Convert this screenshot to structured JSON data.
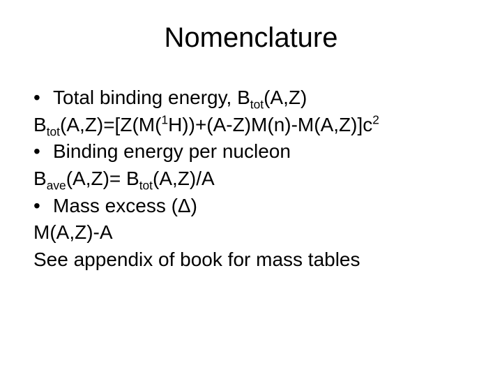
{
  "title": "Nomenclature",
  "lines": {
    "l1_pre": "Total binding energy, B",
    "l1_sub": "tot",
    "l1_post": "(A,Z)",
    "l2_a": "B",
    "l2_sub1": "tot",
    "l2_b": "(A,Z)=[Z(M(",
    "l2_sup1": "1",
    "l2_c": "H))+(A-Z)M(n)-M(A,Z)]c",
    "l2_sup2": "2",
    "l3": "Binding energy per nucleon",
    "l4_a": "B",
    "l4_sub1": "ave",
    "l4_b": "(A,Z)= B",
    "l4_sub2": "tot",
    "l4_c": "(A,Z)/A",
    "l5": "Mass excess (Δ)",
    "l6": "M(A,Z)-A",
    "l7": "See appendix of book for mass tables"
  },
  "bullet": "•",
  "colors": {
    "text": "#000000",
    "background": "#ffffff"
  },
  "font_sizes": {
    "title": 40,
    "body": 28
  }
}
